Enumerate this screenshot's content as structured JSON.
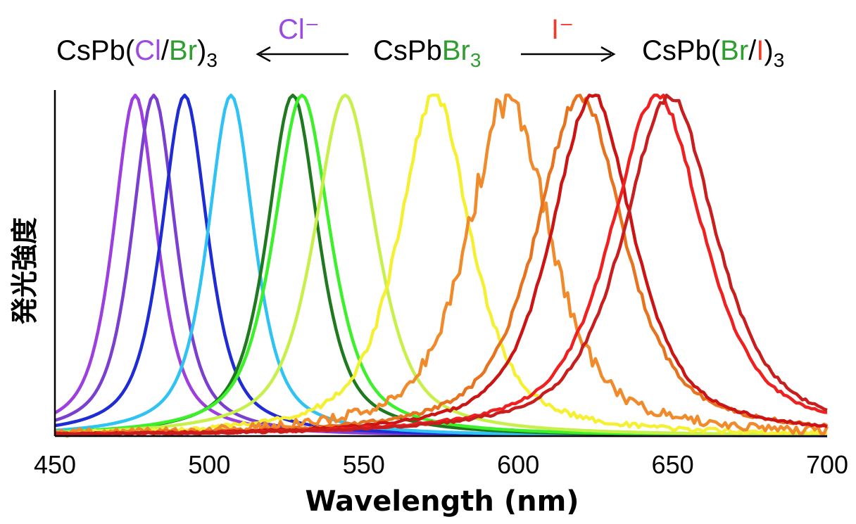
{
  "colors": {
    "cl": "#9b4be0",
    "br": "#2e9e2e",
    "i": "#f03c2a",
    "black": "#000000"
  },
  "header": {
    "left": {
      "prefix": "CsPb(",
      "el1": "Cl",
      "sep": "/",
      "el2": "Br",
      "suffix": ")",
      "sub": "3"
    },
    "center": {
      "prefix": "CsPb",
      "el": "Br",
      "sub": "3"
    },
    "right": {
      "prefix": "CsPb(",
      "el1": "Br",
      "sep": "/",
      "el2": "I",
      "suffix": ")",
      "sub": "3"
    },
    "left_arrow_ion": "Cl⁻",
    "right_arrow_ion": "I⁻"
  },
  "chart_data": {
    "type": "line",
    "title": "",
    "xlabel": "Wavelength (nm)",
    "ylabel": "発光強度",
    "xlim": [
      450,
      700
    ],
    "ylim": [
      0,
      1.0
    ],
    "x_ticks": [
      450,
      500,
      550,
      600,
      650,
      700
    ],
    "x_tick_labels": [
      "450",
      "500",
      "550",
      "600",
      "650",
      "700"
    ],
    "grid": false,
    "legend": "none",
    "series": [
      {
        "name": "476 nm",
        "color": "#9d3fdf",
        "peak": 476,
        "fwhm": 17,
        "noise": 0
      },
      {
        "name": "482 nm",
        "color": "#7b3fcf",
        "peak": 482,
        "fwhm": 17,
        "noise": 0
      },
      {
        "name": "492 nm",
        "color": "#1f2bd4",
        "peak": 492,
        "fwhm": 18,
        "noise": 0
      },
      {
        "name": "507 nm",
        "color": "#2ec3f2",
        "peak": 507,
        "fwhm": 18,
        "noise": 0
      },
      {
        "name": "527 nm",
        "color": "#1f7a1f",
        "peak": 527,
        "fwhm": 20,
        "noise": 0
      },
      {
        "name": "530 nm",
        "color": "#3cf02a",
        "peak": 530,
        "fwhm": 22,
        "noise": 0
      },
      {
        "name": "544 nm",
        "color": "#c8f04a",
        "peak": 544,
        "fwhm": 24,
        "noise": 0
      },
      {
        "name": "573 nm",
        "color": "#f5f032",
        "peak": 573,
        "fwhm": 28,
        "noise": 0.02
      },
      {
        "name": "597 nm",
        "color": "#f08a2a",
        "peak": 597,
        "fwhm": 32,
        "noise": 0.04
      },
      {
        "name": "620 nm",
        "color": "#e8731e",
        "peak": 620,
        "fwhm": 34,
        "noise": 0.015
      },
      {
        "name": "624 nm",
        "color": "#cc1414",
        "peak": 624,
        "fwhm": 32,
        "noise": 0.01
      },
      {
        "name": "645 nm",
        "color": "#f02020",
        "peak": 645,
        "fwhm": 36,
        "noise": 0.01
      },
      {
        "name": "649 nm",
        "color": "#c81e1e",
        "peak": 649,
        "fwhm": 36,
        "noise": 0.01
      }
    ]
  }
}
